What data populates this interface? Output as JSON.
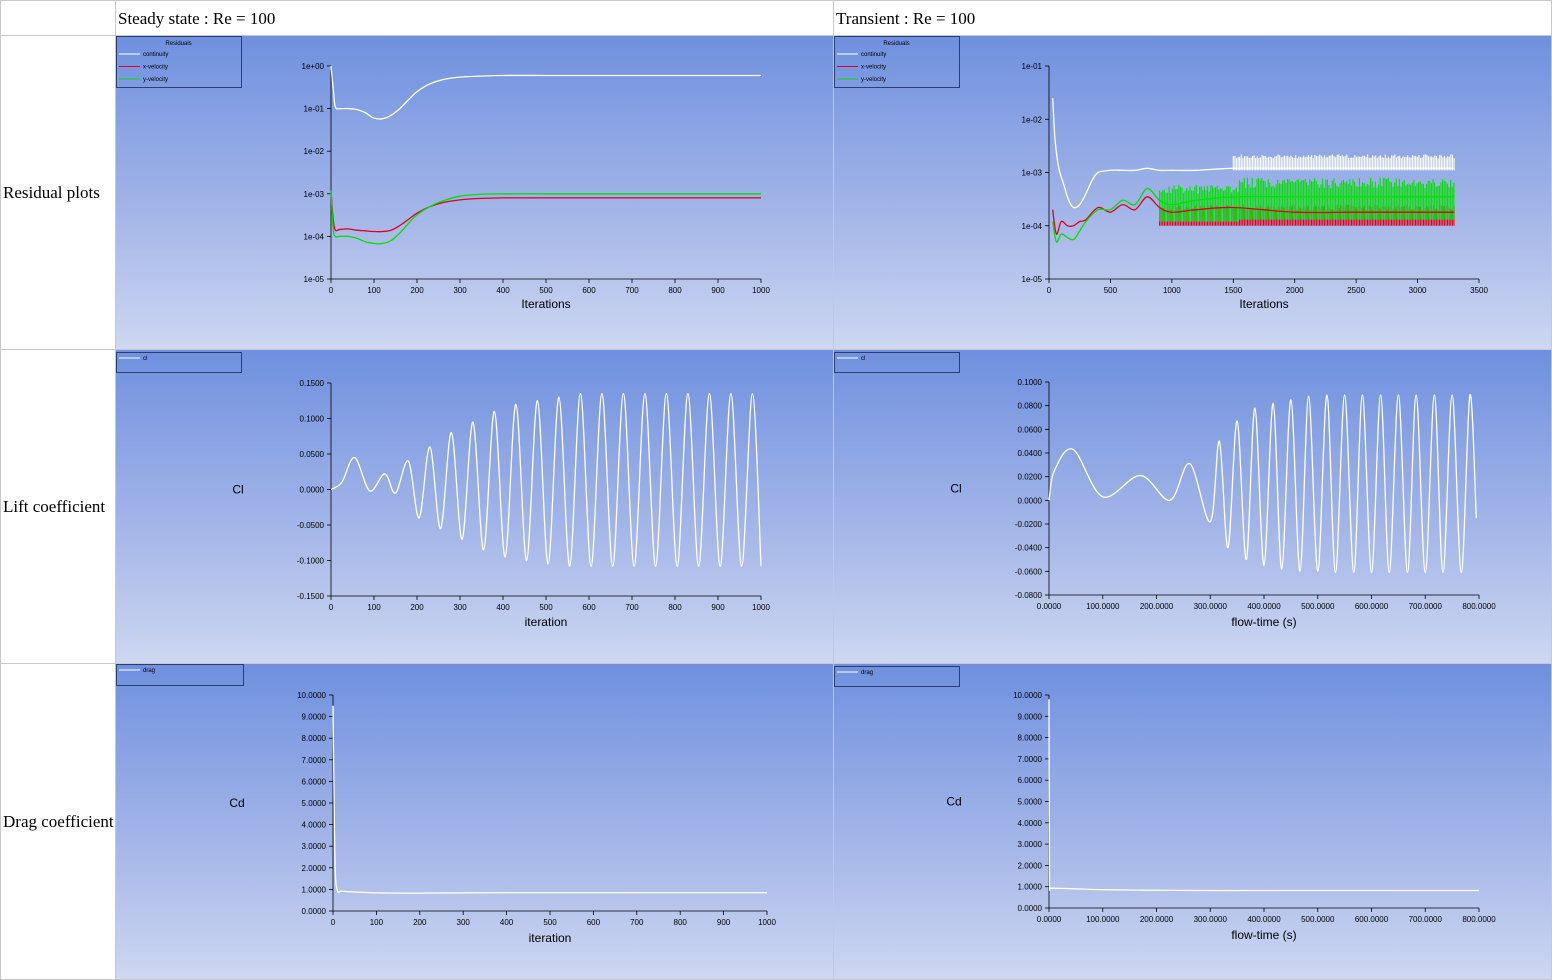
{
  "table": {
    "header": {
      "col1": "Steady state : Re = 100",
      "col2": "Transient : Re = 100"
    },
    "rows": [
      {
        "label": "Residual plots"
      },
      {
        "label": "Lift coefficient"
      },
      {
        "label": "Drag coefficient"
      }
    ]
  },
  "colors": {
    "bg_top": "#6f90df",
    "bg_bottom": "#cdd7f1",
    "continuity": "#ffffff",
    "x_velocity": "#e0001a",
    "y_velocity": "#00e000",
    "curve": "#ffffff"
  },
  "chart_data": [
    {
      "id": "steady-residuals",
      "type": "line",
      "legend_title": "Residuals",
      "xlabel": "Iterations",
      "ylabel": "",
      "yscale": "log",
      "xlim": [
        0,
        1000
      ],
      "ylim": [
        1e-05,
        1
      ],
      "xticks": [
        "0",
        "100",
        "200",
        "300",
        "400",
        "500",
        "600",
        "700",
        "800",
        "900",
        "1000"
      ],
      "xtick_values": [
        0,
        100,
        200,
        300,
        400,
        500,
        600,
        700,
        800,
        900,
        1000
      ],
      "yticks": [
        "1e-05",
        "1e-04",
        "1e-03",
        "1e-02",
        "1e-01",
        "1e+00"
      ],
      "ytick_values": [
        1e-05,
        0.0001,
        0.001,
        0.01,
        0.1,
        1
      ],
      "series": [
        {
          "name": "continuity",
          "color": "#ffffff",
          "x": [
            0,
            5,
            10,
            20,
            40,
            60,
            80,
            100,
            120,
            140,
            160,
            180,
            200,
            230,
            260,
            300,
            350,
            400,
            500,
            600,
            700,
            800,
            900,
            1000
          ],
          "y": [
            1.0,
            0.3,
            0.11,
            0.1,
            0.1,
            0.095,
            0.08,
            0.06,
            0.058,
            0.07,
            0.1,
            0.16,
            0.25,
            0.38,
            0.48,
            0.55,
            0.58,
            0.6,
            0.6,
            0.6,
            0.6,
            0.6,
            0.6,
            0.6
          ]
        },
        {
          "name": "x-velocity",
          "color": "#e0001a",
          "x": [
            0,
            5,
            10,
            20,
            40,
            60,
            80,
            100,
            120,
            140,
            160,
            180,
            200,
            230,
            260,
            300,
            350,
            400,
            500,
            600,
            700,
            800,
            900,
            1000
          ],
          "y": [
            0.0012,
            0.00025,
            0.00014,
            0.000145,
            0.00015,
            0.00014,
            0.000135,
            0.00013,
            0.00013,
            0.00014,
            0.00018,
            0.00025,
            0.00035,
            0.0005,
            0.00062,
            0.00072,
            0.00078,
            0.0008,
            0.0008,
            0.0008,
            0.0008,
            0.0008,
            0.0008,
            0.0008
          ]
        },
        {
          "name": "y-velocity",
          "color": "#00e000",
          "x": [
            0,
            5,
            10,
            20,
            40,
            60,
            80,
            100,
            120,
            140,
            160,
            180,
            200,
            230,
            260,
            300,
            350,
            400,
            500,
            600,
            700,
            800,
            900,
            1000
          ],
          "y": [
            0.0012,
            0.00015,
            0.0001,
            0.0001,
            0.0001,
            9e-05,
            7.5e-05,
            6.8e-05,
            6.8e-05,
            8e-05,
            0.00012,
            0.0002,
            0.00032,
            0.0005,
            0.00068,
            0.00088,
            0.00098,
            0.001,
            0.001,
            0.001,
            0.001,
            0.001,
            0.001,
            0.001
          ]
        }
      ]
    },
    {
      "id": "transient-residuals",
      "type": "line",
      "legend_title": "Residuals",
      "xlabel": "Iterations",
      "ylabel": "",
      "yscale": "log",
      "xlim": [
        0,
        3500
      ],
      "ylim": [
        1e-05,
        0.1
      ],
      "xticks": [
        "0",
        "500",
        "1000",
        "1500",
        "2000",
        "2500",
        "3000",
        "3500"
      ],
      "xtick_values": [
        0,
        500,
        1000,
        1500,
        2000,
        2500,
        3000,
        3500
      ],
      "yticks": [
        "1e-05",
        "1e-04",
        "1e-03",
        "1e-02",
        "1e-01"
      ],
      "ytick_values": [
        1e-05,
        0.0001,
        0.001,
        0.01,
        0.1
      ],
      "series": [
        {
          "name": "continuity",
          "color": "#ffffff",
          "x": [
            30,
            50,
            80,
            120,
            160,
            200,
            250,
            300,
            350,
            400,
            500,
            600,
            700,
            800,
            900,
            1000,
            1200,
            1500,
            2000,
            2500,
            3000,
            3300
          ],
          "y": [
            0.025,
            0.004,
            0.0012,
            0.0006,
            0.0003,
            0.00022,
            0.00025,
            0.0004,
            0.0007,
            0.001,
            0.0011,
            0.0011,
            0.0011,
            0.0012,
            0.0011,
            0.0011,
            0.0011,
            0.0012,
            0.0012,
            0.0012,
            0.0012,
            0.0012
          ],
          "band": [
            [
              1500,
              3300,
              0.0011,
              0.0022
            ]
          ]
        },
        {
          "name": "x-velocity",
          "color": "#e0001a",
          "x": [
            30,
            60,
            100,
            150,
            200,
            250,
            300,
            400,
            500,
            600,
            700,
            800,
            900,
            1000,
            1200,
            1500,
            2000,
            2500,
            3000,
            3300
          ],
          "y": [
            0.0002,
            7e-05,
            0.00012,
            0.0001,
            0.0001,
            0.00012,
            0.00013,
            0.00022,
            0.00018,
            0.00025,
            0.0002,
            0.00035,
            0.00022,
            0.00018,
            0.0002,
            0.00022,
            0.00018,
            0.00018,
            0.00018,
            0.00018
          ],
          "band": [
            [
              900,
              3300,
              0.0001,
              0.00025
            ]
          ]
        },
        {
          "name": "y-velocity",
          "color": "#00e000",
          "x": [
            30,
            60,
            100,
            150,
            200,
            250,
            300,
            400,
            500,
            600,
            700,
            800,
            900,
            1000,
            1200,
            1500,
            2000,
            2500,
            3000,
            3300
          ],
          "y": [
            0.00012,
            5e-05,
            7e-05,
            6e-05,
            5.5e-05,
            8e-05,
            0.00012,
            0.0002,
            0.0002,
            0.0003,
            0.00025,
            0.0005,
            0.0003,
            0.00025,
            0.0003,
            0.00035,
            0.00035,
            0.00035,
            0.00035,
            0.00035
          ],
          "band": [
            [
              900,
              1550,
              0.00012,
              0.0006
            ],
            [
              1550,
              3300,
              0.00013,
              0.0008
            ]
          ]
        }
      ]
    },
    {
      "id": "steady-lift",
      "type": "line",
      "legend_title": "",
      "legend_entry": "cl",
      "xlabel": "iteration",
      "ylabel": "Cl",
      "xlim": [
        0,
        1000
      ],
      "ylim": [
        -0.15,
        0.15
      ],
      "xticks": [
        "0",
        "100",
        "200",
        "300",
        "400",
        "500",
        "600",
        "700",
        "800",
        "900",
        "1000"
      ],
      "xtick_values": [
        0,
        100,
        200,
        300,
        400,
        500,
        600,
        700,
        800,
        900,
        1000
      ],
      "yticks": [
        "-0.1500",
        "-0.1000",
        "-0.0500",
        "0.0000",
        "0.0500",
        "0.1000",
        "0.1500"
      ],
      "ytick_values": [
        -0.15,
        -0.1,
        -0.05,
        0,
        0.05,
        0.1,
        0.15
      ],
      "series": [
        {
          "name": "cl",
          "color": "#ffffff",
          "x": [
            0,
            25,
            55,
            90,
            125,
            150,
            180,
            205,
            230,
            255,
            280,
            305,
            330,
            355,
            380,
            405,
            430,
            455,
            480,
            505,
            530,
            555,
            580,
            605,
            630,
            655,
            680,
            705,
            730,
            755,
            780,
            805,
            830,
            855,
            880,
            905,
            930,
            955,
            980,
            1000
          ],
          "y": [
            0.0,
            0.01,
            0.045,
            -0.002,
            0.022,
            -0.005,
            0.04,
            -0.04,
            0.06,
            -0.055,
            0.08,
            -0.07,
            0.095,
            -0.085,
            0.11,
            -0.095,
            0.12,
            -0.1,
            0.125,
            -0.105,
            0.13,
            -0.108,
            0.135,
            -0.108,
            0.135,
            -0.108,
            0.135,
            -0.108,
            0.135,
            -0.108,
            0.135,
            -0.108,
            0.135,
            -0.108,
            0.135,
            -0.108,
            0.135,
            -0.108,
            0.135,
            -0.108
          ]
        }
      ]
    },
    {
      "id": "transient-lift",
      "type": "line",
      "legend_title": "",
      "legend_entry": "cl",
      "xlabel": "flow-time (s)",
      "ylabel": "Cl",
      "xlim": [
        0,
        800
      ],
      "ylim": [
        -0.08,
        0.1
      ],
      "xticks": [
        "0.0000",
        "100.0000",
        "200.0000",
        "300.0000",
        "400.0000",
        "500.0000",
        "600.0000",
        "700.0000",
        "800.0000"
      ],
      "xtick_values": [
        0,
        100,
        200,
        300,
        400,
        500,
        600,
        700,
        800
      ],
      "yticks": [
        "-0.0800",
        "-0.0600",
        "-0.0400",
        "-0.0200",
        "0.0000",
        "0.0200",
        "0.0400",
        "0.0600",
        "0.0800",
        "0.1000"
      ],
      "ytick_values": [
        -0.08,
        -0.06,
        -0.04,
        -0.02,
        0,
        0.02,
        0.04,
        0.06,
        0.08,
        0.1
      ],
      "series": [
        {
          "name": "cl",
          "color": "#ffffff",
          "x": [
            0,
            10,
            45,
            100,
            170,
            225,
            262,
            300,
            317,
            333,
            350,
            367,
            383,
            400,
            417,
            433,
            450,
            467,
            483,
            500,
            517,
            533,
            550,
            567,
            583,
            600,
            617,
            633,
            650,
            667,
            683,
            700,
            717,
            733,
            750,
            767,
            783,
            795
          ],
          "y": [
            0.0,
            0.025,
            0.043,
            0.003,
            0.021,
            -0.0,
            0.031,
            -0.018,
            0.05,
            -0.04,
            0.067,
            -0.05,
            0.078,
            -0.055,
            0.082,
            -0.058,
            0.085,
            -0.06,
            0.088,
            -0.06,
            0.089,
            -0.061,
            0.089,
            -0.061,
            0.089,
            -0.061,
            0.089,
            -0.061,
            0.089,
            -0.061,
            0.089,
            -0.061,
            0.089,
            -0.061,
            0.089,
            -0.061,
            0.089,
            -0.015
          ]
        }
      ]
    },
    {
      "id": "steady-drag",
      "type": "line",
      "legend_title": "",
      "legend_entry": "drag",
      "xlabel": "iteration",
      "ylabel": "Cd",
      "xlim": [
        0,
        1000
      ],
      "ylim": [
        0,
        10
      ],
      "xticks": [
        "0",
        "100",
        "200",
        "300",
        "400",
        "500",
        "600",
        "700",
        "800",
        "900",
        "1000"
      ],
      "xtick_values": [
        0,
        100,
        200,
        300,
        400,
        500,
        600,
        700,
        800,
        900,
        1000
      ],
      "yticks": [
        "0.0000",
        "1.0000",
        "2.0000",
        "3.0000",
        "4.0000",
        "5.0000",
        "6.0000",
        "7.0000",
        "8.0000",
        "9.0000",
        "10.0000"
      ],
      "ytick_values": [
        0,
        1,
        2,
        3,
        4,
        5,
        6,
        7,
        8,
        9,
        10
      ],
      "series": [
        {
          "name": "drag",
          "color": "#ffffff",
          "x": [
            0,
            2,
            5,
            10,
            20,
            50,
            100,
            150,
            200,
            300,
            400,
            500,
            600,
            700,
            800,
            900,
            1000
          ],
          "y": [
            9.5,
            6.0,
            2.0,
            0.95,
            0.92,
            0.88,
            0.84,
            0.83,
            0.83,
            0.84,
            0.85,
            0.85,
            0.85,
            0.85,
            0.85,
            0.85,
            0.85
          ]
        }
      ]
    },
    {
      "id": "transient-drag",
      "type": "line",
      "legend_title": "",
      "legend_entry": "drag",
      "xlabel": "flow-time (s)",
      "ylabel": "Cd",
      "xlim": [
        0,
        800
      ],
      "ylim": [
        0,
        10
      ],
      "xticks": [
        "0.0000",
        "100.0000",
        "200.0000",
        "300.0000",
        "400.0000",
        "500.0000",
        "600.0000",
        "700.0000",
        "800.0000"
      ],
      "xtick_values": [
        0,
        100,
        200,
        300,
        400,
        500,
        600,
        700,
        800
      ],
      "yticks": [
        "0.0000",
        "1.0000",
        "2.0000",
        "3.0000",
        "4.0000",
        "5.0000",
        "6.0000",
        "7.0000",
        "8.0000",
        "9.0000",
        "10.0000"
      ],
      "ytick_values": [
        0,
        1,
        2,
        3,
        4,
        5,
        6,
        7,
        8,
        9,
        10
      ],
      "series": [
        {
          "name": "drag",
          "color": "#ffffff",
          "x": [
            0,
            0.5,
            1,
            2,
            5,
            20,
            50,
            100,
            200,
            300,
            400,
            500,
            600,
            700,
            800
          ],
          "y": [
            9.8,
            5.0,
            1.2,
            0.95,
            0.93,
            0.92,
            0.9,
            0.86,
            0.83,
            0.82,
            0.82,
            0.82,
            0.82,
            0.82,
            0.82
          ]
        }
      ]
    }
  ]
}
